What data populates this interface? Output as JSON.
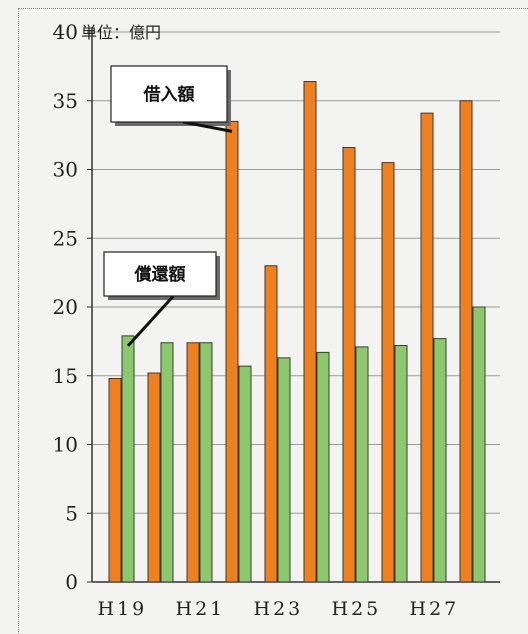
{
  "unit_label": "単位：億円",
  "colors": {
    "borrowing": "#f07f1e",
    "repayment": "#8cc86c",
    "grid": "#9a9a9a",
    "axis": "#333333"
  },
  "chart_data": {
    "type": "bar",
    "title": "",
    "xlabel": "",
    "ylabel": "",
    "ylim": [
      0,
      40
    ],
    "yticks": [
      0,
      5,
      10,
      15,
      20,
      25,
      30,
      35,
      40
    ],
    "grid": true,
    "categories": [
      "H19",
      "H20",
      "H21",
      "H22",
      "H23",
      "H24",
      "H25",
      "H26",
      "H27",
      "H28"
    ],
    "xtick_labels": [
      {
        "category": "H19",
        "label": "H19"
      },
      {
        "category": "H21",
        "label": "H21"
      },
      {
        "category": "H23",
        "label": "H23"
      },
      {
        "category": "H25",
        "label": "H25"
      },
      {
        "category": "H27",
        "label": "H27"
      }
    ],
    "series": [
      {
        "name": "借入額",
        "color": "#f07f1e",
        "values": [
          14.8,
          15.2,
          17.4,
          33.5,
          23.0,
          36.4,
          31.6,
          30.5,
          34.1,
          35.0
        ]
      },
      {
        "name": "償還額",
        "color": "#8cc86c",
        "values": [
          17.9,
          17.4,
          17.4,
          15.7,
          16.3,
          16.7,
          17.1,
          17.2,
          17.7,
          20.0
        ]
      }
    ],
    "annotations": [
      {
        "text": "借入額",
        "target_series": "借入額",
        "target_category": "H22"
      },
      {
        "text": "償還額",
        "target_series": "償還額",
        "target_category": "H19"
      }
    ]
  }
}
